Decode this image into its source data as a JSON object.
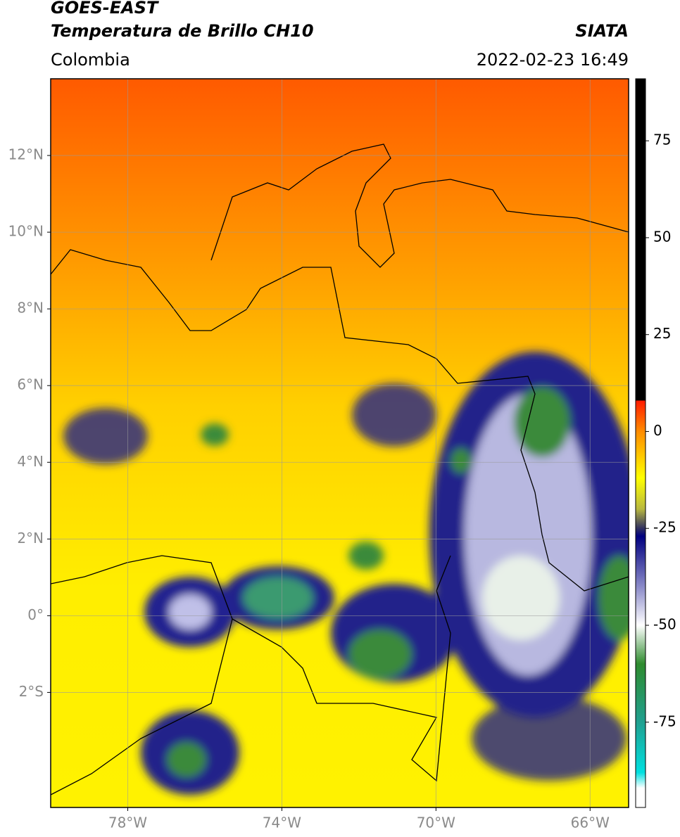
{
  "chart_data": {
    "type": "map",
    "title": "GOES-EAST",
    "subtitle": "Temperatura de Brillo CH10",
    "source": "SIATA",
    "region": "Colombia",
    "datetime": "2022-02-23 16:49",
    "xlim": [
      -80,
      -65
    ],
    "xticks": [
      {
        "value": -78,
        "label": "78°W"
      },
      {
        "value": -74,
        "label": "74°W"
      },
      {
        "value": -70,
        "label": "70°W"
      },
      {
        "value": -66,
        "label": "66°W"
      }
    ],
    "ylim": [
      -5,
      14
    ],
    "yticks": [
      {
        "value": -2,
        "label": "2°S"
      },
      {
        "value": 0,
        "label": "0°"
      },
      {
        "value": 2,
        "label": "2°N"
      },
      {
        "value": 4,
        "label": "4°N"
      },
      {
        "value": 6,
        "label": "6°N"
      },
      {
        "value": 8,
        "label": "8°N"
      },
      {
        "value": 10,
        "label": "10°N"
      },
      {
        "value": 12,
        "label": "12°N"
      }
    ],
    "grid": true,
    "colorbar": {
      "clim": [
        -97,
        91
      ],
      "ticks": [
        -75,
        -50,
        -25,
        0,
        25,
        50,
        75
      ],
      "colormap": [
        [
          91,
          "#000000"
        ],
        [
          8,
          "#000000"
        ],
        [
          8,
          "#ff1a00"
        ],
        [
          0,
          "#ff8c00"
        ],
        [
          -12,
          "#ffff00"
        ],
        [
          -20,
          "#b8b840"
        ],
        [
          -25,
          "#303060"
        ],
        [
          -27,
          "#000080"
        ],
        [
          -40,
          "#8a8ac8"
        ],
        [
          -50,
          "#ffffff"
        ],
        [
          -60,
          "#2e8b2e"
        ],
        [
          -75,
          "#20a090"
        ],
        [
          -88,
          "#00e0e0"
        ],
        [
          -92,
          "#ffffff"
        ],
        [
          -97,
          "#ffffff"
        ]
      ]
    }
  }
}
